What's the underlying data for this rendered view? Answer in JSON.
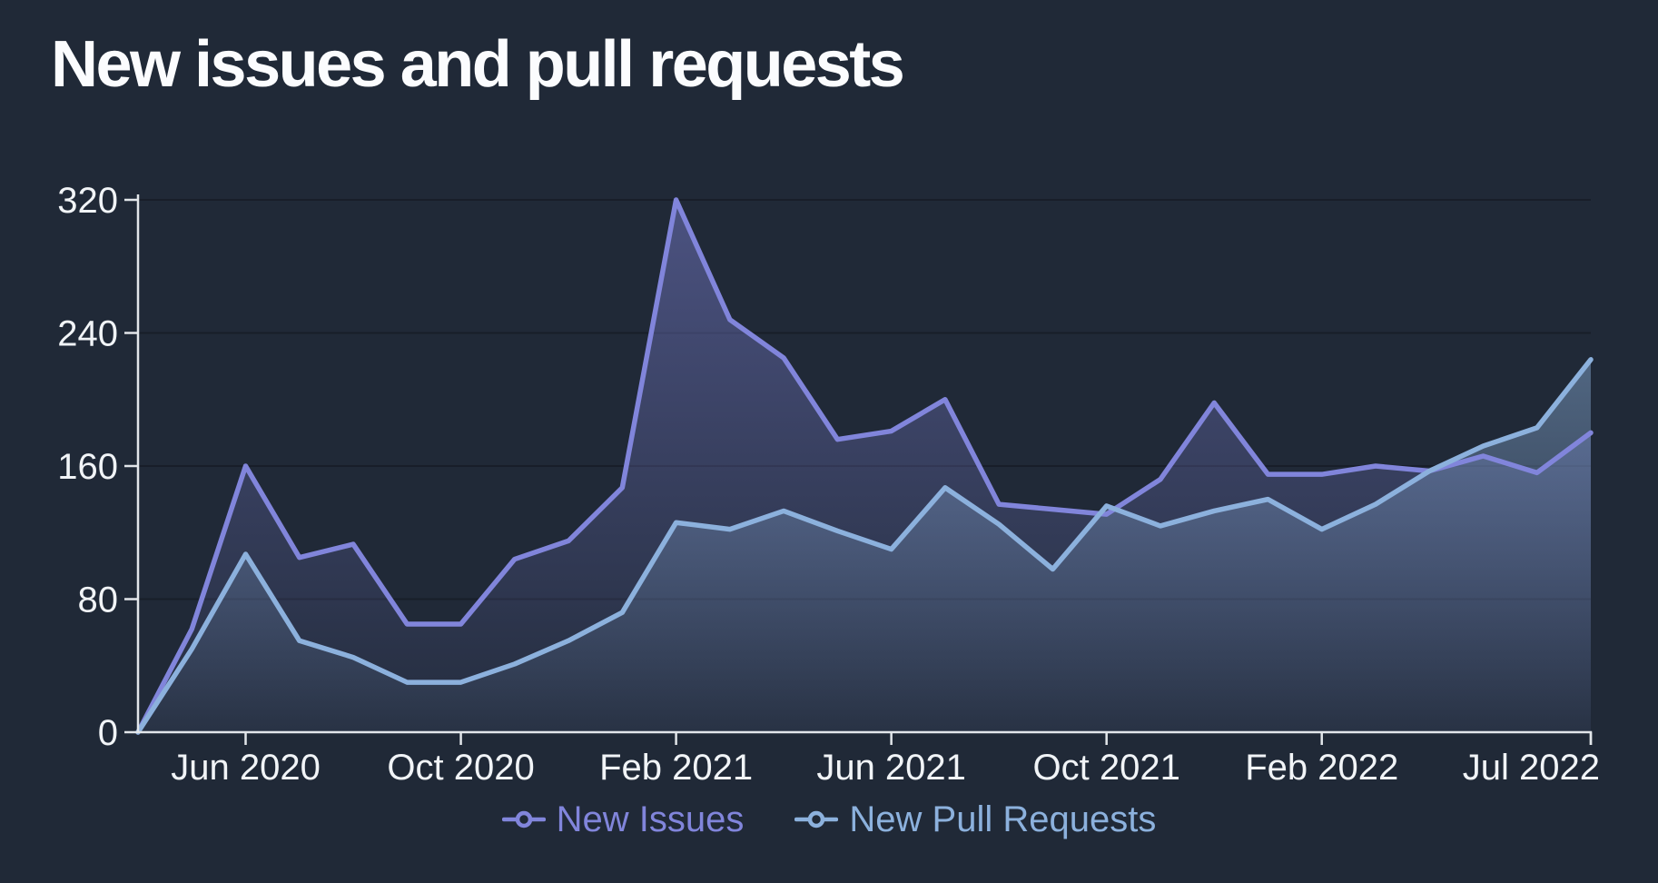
{
  "title": "New issues and pull requests",
  "colors": {
    "background": "#202937",
    "axis": "#e2e6ea",
    "tick_label": "#f1f4f7",
    "title": "#fbfcfe",
    "gridline": "rgba(0,0,0,0.25)",
    "new_issues": "#8185db",
    "new_pull_requests": "#8cb1dd"
  },
  "chart_data": {
    "type": "area",
    "title": "New issues and pull requests",
    "x": [
      "Apr 2020",
      "May 2020",
      "Jun 2020",
      "Jul 2020",
      "Aug 2020",
      "Sep 2020",
      "Oct 2020",
      "Nov 2020",
      "Dec 2020",
      "Jan 2021",
      "Feb 2021",
      "Mar 2021",
      "Apr 2021",
      "May 2021",
      "Jun 2021",
      "Jul 2021",
      "Aug 2021",
      "Sep 2021",
      "Oct 2021",
      "Nov 2021",
      "Dec 2021",
      "Jan 2022",
      "Feb 2022",
      "Mar 2022",
      "Apr 2022",
      "May 2022",
      "Jun 2022",
      "Jul 2022"
    ],
    "series": [
      {
        "name": "New Issues",
        "color": "#8185db",
        "values": [
          0,
          62,
          160,
          105,
          113,
          65,
          65,
          104,
          115,
          147,
          320,
          248,
          225,
          176,
          181,
          200,
          137,
          134,
          131,
          152,
          198,
          155,
          155,
          160,
          157,
          166,
          156,
          180
        ]
      },
      {
        "name": "New Pull Requests",
        "color": "#8cb1dd",
        "values": [
          0,
          50,
          107,
          55,
          45,
          30,
          30,
          41,
          55,
          72,
          126,
          122,
          133,
          121,
          110,
          147,
          125,
          98,
          136,
          124,
          133,
          140,
          122,
          137,
          157,
          172,
          183,
          224
        ]
      }
    ],
    "xlabel": "",
    "ylabel": "",
    "ylim": [
      0,
      320
    ],
    "yticks": [
      0,
      80,
      160,
      240,
      320
    ],
    "xtick_labels": [
      "Jun 2020",
      "Oct 2020",
      "Feb 2021",
      "Jun 2021",
      "Oct 2021",
      "Feb 2022",
      "Jul 2022"
    ],
    "xtick_indices": [
      2,
      6,
      10,
      14,
      18,
      22,
      27
    ],
    "grid": "horizontal",
    "legend_position": "bottom",
    "area_opacity_top": 0.45,
    "area_opacity_bottom": 0.04
  }
}
